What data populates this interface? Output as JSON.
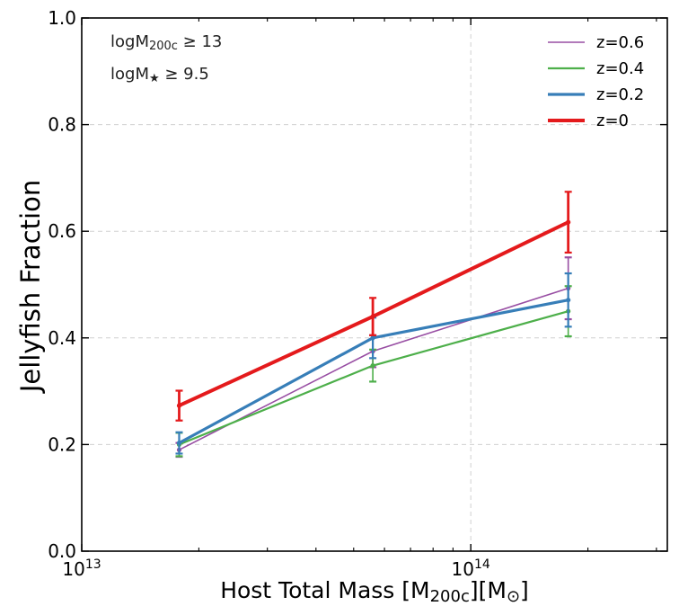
{
  "chart_data": {
    "type": "line",
    "xscale": "log",
    "xlim": [
      10000000000000.0,
      320000000000000.0
    ],
    "ylim": [
      0.0,
      1.0
    ],
    "xlabel": "Host Total Mass [M",
    "xlabel_sub1": "200c",
    "xlabel_mid": "][M",
    "xlabel_sub2": "⊙",
    "xlabel_end": "]",
    "ylabel": "Jellyfish Fraction",
    "x_tick_labels": [
      {
        "value": 10000000000000.0,
        "base": "10",
        "exp": "13"
      },
      {
        "value": 100000000000000.0,
        "base": "10",
        "exp": "14"
      }
    ],
    "y_ticks": [
      0.0,
      0.2,
      0.4,
      0.6,
      0.8,
      1.0
    ],
    "y_tick_labels": [
      "0.0",
      "0.2",
      "0.4",
      "0.6",
      "0.8",
      "1.0"
    ],
    "annotations": [
      {
        "prefix": "logM",
        "sub": "200c",
        "suffix": " ≥ 13"
      },
      {
        "prefix": "logM",
        "sub": "★",
        "suffix": " ≥ 9.5"
      }
    ],
    "legend_position": "top-right",
    "series": [
      {
        "name": "z=0.6",
        "color": "#984ea3",
        "linewidth": 1.6,
        "x": [
          17800000000000.0,
          56000000000000.0,
          178000000000000.0
        ],
        "y": [
          0.19,
          0.375,
          0.493
        ],
        "err": [
          [
            0.013,
            0.013
          ],
          [
            0.03,
            0.03
          ],
          [
            0.058,
            0.058
          ]
        ]
      },
      {
        "name": "z=0.4",
        "color": "#4daf4a",
        "linewidth": 2.2,
        "x": [
          17800000000000.0,
          56000000000000.0,
          178000000000000.0
        ],
        "y": [
          0.2,
          0.348,
          0.45
        ],
        "err": [
          [
            0.022,
            0.022
          ],
          [
            0.03,
            0.03
          ],
          [
            0.047,
            0.047
          ]
        ]
      },
      {
        "name": "z=0.2",
        "color": "#377eb8",
        "linewidth": 3.2,
        "x": [
          17800000000000.0,
          56000000000000.0,
          178000000000000.0
        ],
        "y": [
          0.203,
          0.4,
          0.471
        ],
        "err": [
          [
            0.02,
            0.02
          ],
          [
            0.038,
            0.038
          ],
          [
            0.05,
            0.05
          ]
        ]
      },
      {
        "name": "z=0",
        "color": "#e41a1c",
        "linewidth": 4.0,
        "x": [
          17800000000000.0,
          56000000000000.0,
          178000000000000.0
        ],
        "y": [
          0.273,
          0.44,
          0.617
        ],
        "err": [
          [
            0.028,
            0.028
          ],
          [
            0.035,
            0.035
          ],
          [
            0.057,
            0.057
          ]
        ]
      }
    ]
  }
}
